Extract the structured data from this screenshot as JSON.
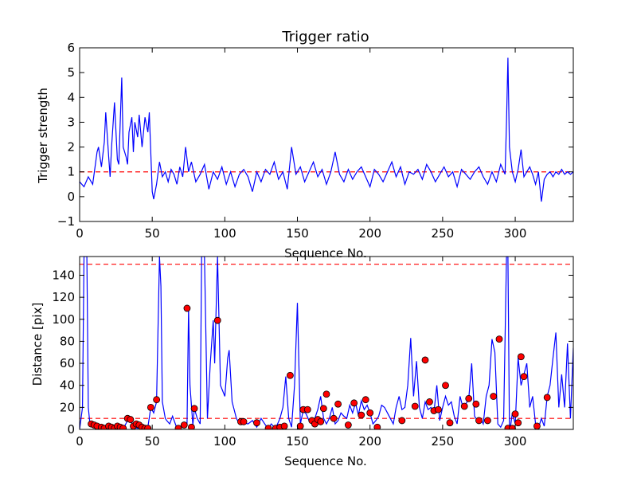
{
  "chart_data": [
    {
      "type": "line",
      "title": "Trigger ratio",
      "xlabel": "Sequence No.",
      "ylabel": "Trigger strength",
      "xlim": [
        0,
        340
      ],
      "ylim": [
        -1,
        6
      ],
      "xticks": [
        0,
        50,
        100,
        150,
        200,
        250,
        300
      ],
      "yticks": [
        -1,
        0,
        1,
        2,
        3,
        4,
        5,
        6
      ],
      "grid": false,
      "line_color": "#0000ff",
      "reference_line": {
        "y": 1,
        "style": "dashed",
        "color": "#ff0000"
      },
      "series": [
        {
          "x": [
            0,
            3,
            6,
            9,
            12,
            13,
            15,
            17,
            18,
            20,
            21,
            22,
            24,
            26,
            27,
            29,
            30,
            32,
            33,
            34,
            36,
            37,
            38,
            40,
            41,
            43,
            45,
            47,
            48,
            50,
            51,
            53,
            55,
            57,
            59,
            61,
            63,
            65,
            67,
            69,
            71,
            73,
            75,
            77,
            80,
            83,
            86,
            89,
            92,
            95,
            98,
            101,
            104,
            107,
            110,
            113,
            116,
            119,
            122,
            125,
            128,
            131,
            134,
            137,
            140,
            143,
            146,
            149,
            152,
            155,
            158,
            161,
            164,
            167,
            170,
            173,
            176,
            179,
            182,
            185,
            188,
            191,
            194,
            197,
            200,
            203,
            206,
            209,
            212,
            215,
            218,
            221,
            224,
            227,
            230,
            233,
            236,
            239,
            242,
            245,
            248,
            251,
            254,
            257,
            260,
            263,
            266,
            269,
            272,
            275,
            278,
            281,
            284,
            287,
            290,
            293,
            294,
            295,
            296,
            298,
            300,
            302,
            304,
            306,
            308,
            310,
            312,
            314,
            316,
            318,
            320,
            322,
            324,
            326,
            328,
            330,
            332,
            334,
            336,
            338,
            340
          ],
          "y": [
            0.6,
            0.4,
            0.8,
            0.5,
            1.8,
            2.0,
            1.2,
            2.2,
            3.4,
            1.6,
            0.8,
            2.0,
            3.8,
            1.5,
            1.3,
            4.8,
            2.0,
            1.6,
            1.3,
            2.6,
            3.2,
            1.8,
            3.0,
            2.4,
            3.3,
            2.0,
            3.2,
            2.6,
            3.4,
            0.2,
            -0.1,
            0.5,
            1.4,
            0.8,
            1.0,
            0.6,
            1.1,
            0.9,
            0.5,
            1.2,
            0.8,
            2.0,
            1.0,
            1.4,
            0.6,
            0.9,
            1.3,
            0.3,
            1.0,
            0.7,
            1.2,
            0.5,
            1.0,
            0.4,
            0.9,
            1.1,
            0.8,
            0.2,
            1.0,
            0.6,
            1.1,
            0.9,
            1.4,
            0.7,
            1.0,
            0.3,
            2.0,
            0.9,
            1.2,
            0.6,
            1.0,
            1.4,
            0.8,
            1.1,
            0.5,
            1.0,
            1.8,
            0.9,
            0.6,
            1.1,
            0.7,
            1.0,
            1.2,
            0.8,
            0.4,
            1.1,
            0.9,
            0.6,
            1.0,
            1.4,
            0.8,
            1.2,
            0.5,
            1.0,
            0.9,
            1.1,
            0.7,
            1.3,
            1.0,
            0.6,
            0.9,
            1.2,
            0.8,
            1.0,
            0.4,
            1.1,
            0.9,
            0.7,
            1.0,
            1.2,
            0.8,
            0.5,
            1.0,
            0.6,
            1.3,
            0.9,
            3.0,
            5.6,
            2.0,
            1.0,
            0.6,
            1.1,
            1.9,
            0.8,
            1.0,
            1.2,
            0.9,
            0.5,
            1.0,
            -0.2,
            0.7,
            0.9,
            1.0,
            0.8,
            1.0,
            0.9,
            1.1,
            0.9,
            1.0,
            0.9,
            1.0
          ]
        }
      ]
    },
    {
      "type": "line",
      "title": "",
      "xlabel": "Sequence No.",
      "ylabel": "Distance [pix]",
      "xlim": [
        0,
        340
      ],
      "ylim": [
        0,
        157
      ],
      "xticks": [
        0,
        50,
        100,
        150,
        200,
        250,
        300
      ],
      "yticks": [
        0,
        20,
        40,
        60,
        80,
        100,
        120,
        140
      ],
      "grid": false,
      "line_color": "#0000ff",
      "marker_color": "#ff0000",
      "reference_lines": [
        {
          "y": 150,
          "style": "dashed",
          "color": "#ff0000"
        },
        {
          "y": 10,
          "style": "dashed",
          "color": "#ff0000"
        }
      ],
      "series": [
        {
          "x": [
            0,
            2,
            3,
            4,
            5,
            6,
            7,
            8,
            10,
            13,
            16,
            19,
            22,
            25,
            28,
            31,
            33,
            35,
            37,
            40,
            43,
            45,
            47,
            49,
            51,
            53,
            55,
            56,
            57,
            59,
            60,
            62,
            64,
            67,
            70,
            72,
            74,
            75,
            76,
            78,
            79,
            81,
            83,
            84,
            86,
            88,
            90,
            92,
            93,
            95,
            97,
            100,
            102,
            103,
            105,
            108,
            110,
            113,
            116,
            119,
            122,
            125,
            128,
            130,
            132,
            134,
            136,
            138,
            140,
            142,
            144,
            146,
            148,
            150,
            152,
            154,
            156,
            158,
            160,
            162,
            164,
            166,
            168,
            170,
            172,
            174,
            176,
            178,
            180,
            182,
            184,
            186,
            188,
            190,
            192,
            194,
            196,
            198,
            200,
            202,
            204,
            206,
            208,
            210,
            212,
            214,
            216,
            218,
            220,
            222,
            224,
            226,
            228,
            230,
            232,
            234,
            236,
            238,
            240,
            242,
            244,
            246,
            248,
            250,
            252,
            254,
            256,
            258,
            260,
            262,
            264,
            266,
            268,
            270,
            272,
            274,
            276,
            278,
            280,
            282,
            284,
            286,
            288,
            290,
            292,
            294,
            295,
            296,
            297,
            298,
            300,
            302,
            304,
            306,
            308,
            310,
            312,
            314,
            316,
            318,
            320,
            322,
            324,
            326,
            328,
            330,
            332,
            334,
            336,
            338,
            340
          ],
          "y": [
            0,
            20,
            157,
            157,
            157,
            20,
            6,
            4,
            3,
            2,
            3,
            1,
            2,
            3,
            4,
            3,
            8,
            10,
            2,
            1,
            2,
            3,
            2,
            20,
            15,
            25,
            157,
            130,
            25,
            10,
            8,
            5,
            12,
            1,
            3,
            2,
            5,
            110,
            40,
            4,
            19,
            10,
            5,
            157,
            157,
            10,
            60,
            99,
            60,
            157,
            40,
            30,
            65,
            72,
            25,
            10,
            5,
            6,
            5,
            8,
            2,
            10,
            4,
            1,
            5,
            2,
            4,
            10,
            20,
            48,
            10,
            2,
            40,
            115,
            5,
            17,
            14,
            8,
            5,
            10,
            18,
            30,
            10,
            5,
            10,
            20,
            5,
            8,
            15,
            12,
            10,
            22,
            15,
            24,
            13,
            26,
            18,
            22,
            15,
            5,
            8,
            12,
            22,
            20,
            15,
            10,
            5,
            20,
            30,
            18,
            20,
            40,
            83,
            30,
            62,
            20,
            10,
            25,
            18,
            20,
            15,
            40,
            8,
            20,
            30,
            22,
            25,
            12,
            5,
            30,
            20,
            23,
            28,
            60,
            12,
            8,
            10,
            5,
            30,
            40,
            82,
            70,
            5,
            2,
            8,
            157,
            157,
            1,
            5,
            15,
            5,
            65,
            40,
            50,
            60,
            20,
            30,
            5,
            1,
            10,
            3,
            30,
            40,
            65,
            88,
            20,
            50,
            20,
            78,
            10,
            74
          ]
        },
        {
          "name": "markers",
          "x": [
            8,
            10,
            12,
            15,
            17,
            20,
            22,
            24,
            26,
            28,
            30,
            33,
            35,
            37,
            39,
            41,
            43,
            45,
            47,
            49,
            53,
            68,
            72,
            74,
            77,
            79,
            95,
            111,
            113,
            122,
            130,
            135,
            138,
            141,
            145,
            152,
            154,
            157,
            160,
            162,
            164,
            166,
            168,
            170,
            175,
            178,
            185,
            189,
            194,
            197,
            200,
            205,
            222,
            231,
            238,
            241,
            244,
            247,
            252,
            255,
            265,
            268,
            273,
            275,
            281,
            285,
            289,
            295,
            298,
            300,
            302,
            304,
            306,
            315,
            322
          ],
          "y": [
            5,
            4,
            3,
            2,
            1,
            3,
            2,
            1,
            3,
            2,
            1,
            10,
            9,
            3,
            5,
            4,
            2,
            1,
            1,
            20,
            27,
            1,
            4,
            110,
            2,
            19,
            99,
            7,
            7,
            6,
            1,
            1,
            2,
            3,
            49,
            3,
            18,
            18,
            8,
            5,
            9,
            7,
            19,
            32,
            10,
            23,
            4,
            24,
            13,
            27,
            15,
            2,
            8,
            21,
            63,
            25,
            17,
            18,
            40,
            6,
            21,
            28,
            23,
            8,
            8,
            30,
            82,
            1,
            1,
            14,
            6,
            66,
            48,
            3,
            29
          ]
        }
      ]
    }
  ]
}
